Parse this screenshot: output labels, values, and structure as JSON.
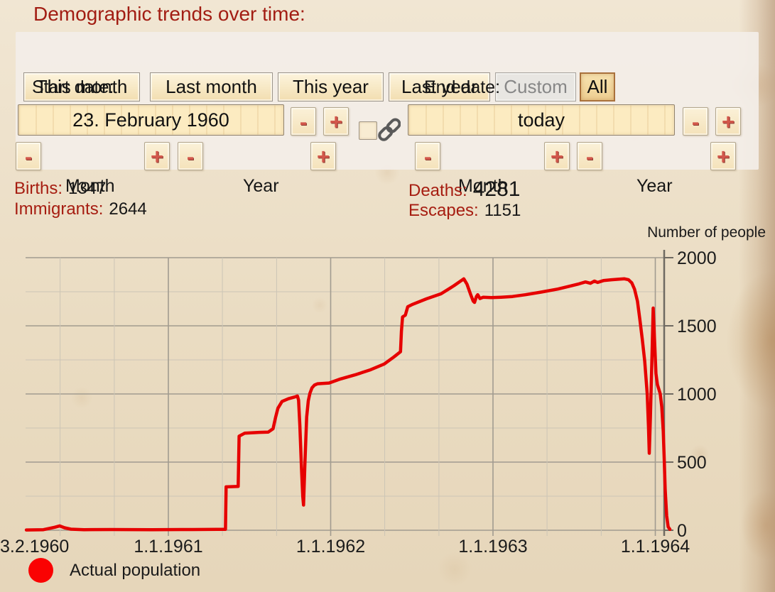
{
  "title": "Demographic trends over time:",
  "glyphs": {
    "minus": "-",
    "plus": "+"
  },
  "range_buttons": [
    {
      "label": "This month",
      "state": "normal"
    },
    {
      "label": "Last month",
      "state": "normal"
    },
    {
      "label": "This year",
      "state": "normal"
    },
    {
      "label": "Last year",
      "state": "normal"
    },
    {
      "label": "Custom",
      "state": "disabled"
    },
    {
      "label": "All",
      "state": "active"
    }
  ],
  "date_controls": {
    "start": {
      "label": "Start date:",
      "value": "23. February 1960",
      "month_label": "Month",
      "year_label": "Year"
    },
    "end": {
      "label": "End date:",
      "value": "today",
      "month_label": "Month",
      "year_label": "Year"
    },
    "link_checkbox_checked": false
  },
  "stats": {
    "births": {
      "label": "Births:",
      "value": "1347"
    },
    "immigrants": {
      "label": "Immigrants:",
      "value": "2644"
    },
    "deaths": {
      "label": "Deaths:",
      "value": "4281"
    },
    "escapes": {
      "label": "Escapes:",
      "value": "1151"
    }
  },
  "chart_data": {
    "type": "line",
    "title": "",
    "xlabel": "",
    "ylabel": "Number of people",
    "xlim": [
      1960.125,
      1964.1
    ],
    "ylim": [
      0,
      2000
    ],
    "grid": true,
    "y_major_ticks": [
      0,
      500,
      1000,
      1500,
      2000
    ],
    "y_minor_step": 250,
    "x_grid": [
      1960.333,
      1960.667,
      1961,
      1961.333,
      1961.667,
      1962,
      1962.333,
      1962.667,
      1963,
      1963.333,
      1963.667,
      1964
    ],
    "x_ticks": [
      {
        "t": 1960.147,
        "label": "3.2.1960",
        "align": "left"
      },
      {
        "t": 1961,
        "label": "1.1.1961"
      },
      {
        "t": 1962,
        "label": "1.1.1962"
      },
      {
        "t": 1963,
        "label": "1.1.1963"
      },
      {
        "t": 1964,
        "label": "1.1.1964"
      }
    ],
    "legend": {
      "label": "Actual population",
      "marker_color": "#fa0202",
      "position": "bottom-left"
    },
    "series": [
      {
        "name": "Actual population",
        "color": "#e60000",
        "points": [
          [
            1960.125,
            2
          ],
          [
            1960.23,
            4
          ],
          [
            1960.3,
            22
          ],
          [
            1960.33,
            32
          ],
          [
            1960.36,
            18
          ],
          [
            1960.4,
            8
          ],
          [
            1960.48,
            4
          ],
          [
            1960.65,
            5
          ],
          [
            1960.9,
            4
          ],
          [
            1961.15,
            5
          ],
          [
            1961.3,
            6
          ],
          [
            1961.352,
            7
          ],
          [
            1961.356,
            318
          ],
          [
            1961.43,
            322
          ],
          [
            1961.436,
            690
          ],
          [
            1961.47,
            712
          ],
          [
            1961.56,
            718
          ],
          [
            1961.615,
            720
          ],
          [
            1961.645,
            745
          ],
          [
            1961.66,
            825
          ],
          [
            1961.675,
            895
          ],
          [
            1961.7,
            945
          ],
          [
            1961.74,
            965
          ],
          [
            1961.78,
            978
          ],
          [
            1961.795,
            985
          ],
          [
            1961.802,
            955
          ],
          [
            1961.81,
            770
          ],
          [
            1961.82,
            455
          ],
          [
            1961.828,
            250
          ],
          [
            1961.833,
            185
          ],
          [
            1961.842,
            515
          ],
          [
            1961.852,
            830
          ],
          [
            1961.862,
            950
          ],
          [
            1961.872,
            1005
          ],
          [
            1961.885,
            1045
          ],
          [
            1961.9,
            1065
          ],
          [
            1961.92,
            1075
          ],
          [
            1961.99,
            1080
          ],
          [
            1962.06,
            1110
          ],
          [
            1962.15,
            1140
          ],
          [
            1962.24,
            1175
          ],
          [
            1962.33,
            1220
          ],
          [
            1962.39,
            1272
          ],
          [
            1962.43,
            1310
          ],
          [
            1962.436,
            1460
          ],
          [
            1962.443,
            1565
          ],
          [
            1962.46,
            1578
          ],
          [
            1962.475,
            1640
          ],
          [
            1962.5,
            1655
          ],
          [
            1962.59,
            1698
          ],
          [
            1962.68,
            1735
          ],
          [
            1962.76,
            1795
          ],
          [
            1962.82,
            1845
          ],
          [
            1962.84,
            1805
          ],
          [
            1962.862,
            1730
          ],
          [
            1962.878,
            1682
          ],
          [
            1962.886,
            1672
          ],
          [
            1962.898,
            1715
          ],
          [
            1962.906,
            1728
          ],
          [
            1962.92,
            1700
          ],
          [
            1962.94,
            1710
          ],
          [
            1962.99,
            1707
          ],
          [
            1963.05,
            1710
          ],
          [
            1963.12,
            1715
          ],
          [
            1963.2,
            1728
          ],
          [
            1963.3,
            1748
          ],
          [
            1963.4,
            1770
          ],
          [
            1963.47,
            1790
          ],
          [
            1963.53,
            1808
          ],
          [
            1963.57,
            1822
          ],
          [
            1963.6,
            1812
          ],
          [
            1963.625,
            1828
          ],
          [
            1963.645,
            1818
          ],
          [
            1963.68,
            1832
          ],
          [
            1963.73,
            1838
          ],
          [
            1963.78,
            1842
          ],
          [
            1963.81,
            1845
          ],
          [
            1963.835,
            1838
          ],
          [
            1963.855,
            1815
          ],
          [
            1963.872,
            1768
          ],
          [
            1963.89,
            1680
          ],
          [
            1963.905,
            1545
          ],
          [
            1963.92,
            1400
          ],
          [
            1963.935,
            1240
          ],
          [
            1963.95,
            1000
          ],
          [
            1963.958,
            760
          ],
          [
            1963.963,
            565
          ],
          [
            1963.97,
            830
          ],
          [
            1963.98,
            1290
          ],
          [
            1963.987,
            1630
          ],
          [
            1963.995,
            1400
          ],
          [
            1964.004,
            1150
          ],
          [
            1964.013,
            1068
          ],
          [
            1964.03,
            1002
          ],
          [
            1964.04,
            905
          ],
          [
            1964.049,
            725
          ],
          [
            1964.055,
            515
          ],
          [
            1964.061,
            300
          ],
          [
            1964.07,
            105
          ],
          [
            1964.079,
            25
          ],
          [
            1964.09,
            6
          ]
        ]
      }
    ]
  }
}
